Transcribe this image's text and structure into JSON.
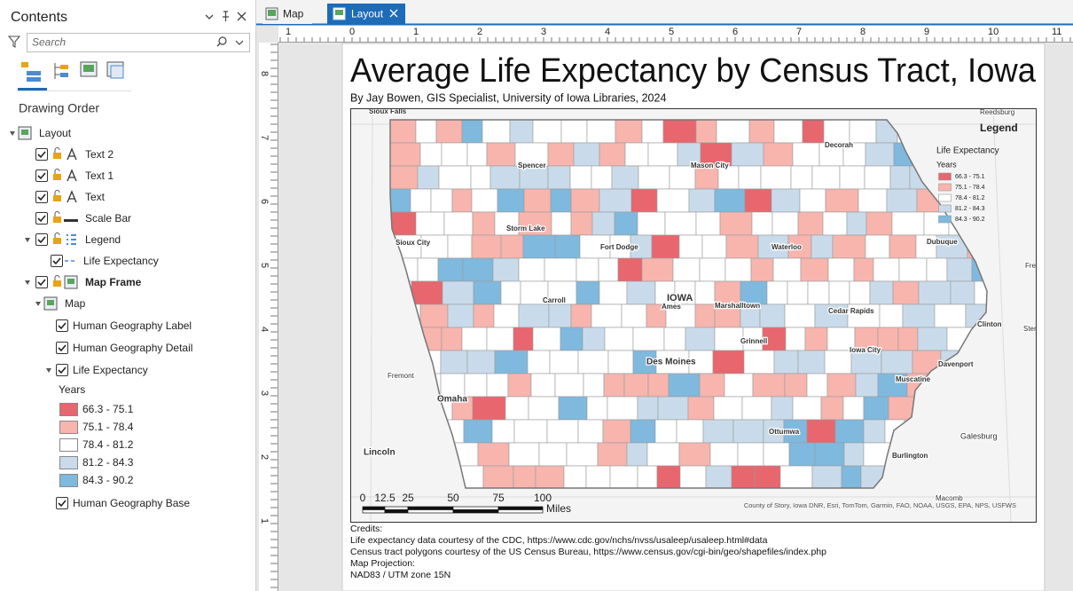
{
  "tabs": [
    "Map",
    "Layout"
  ],
  "contents": {
    "title": "Contents",
    "search_placeholder": "Search",
    "section": "Drawing Order",
    "tree": [
      "Layout",
      "Text 2",
      "Text 1",
      "Text",
      "Scale Bar",
      "Legend",
      "Life Expectancy",
      "Map Frame",
      "Map",
      "Human Geography Label",
      "Human Geography Detail",
      "Life Expectancy",
      "Human Geography Base"
    ],
    "symbology": {
      "field": "Years",
      "classes": [
        {
          "label": "66.3 - 75.1",
          "color": "#e8666e"
        },
        {
          "label": "75.1 - 78.4",
          "color": "#f7b5ae"
        },
        {
          "label": "78.4 - 81.2",
          "color": "#ffffff"
        },
        {
          "label": "81.2 - 84.3",
          "color": "#c9dbeb"
        },
        {
          "label": "84.3 - 90.2",
          "color": "#7fb9de"
        }
      ]
    }
  },
  "ruler": {
    "horizontal": [
      "1",
      "0",
      "1",
      "2",
      "3",
      "4",
      "5",
      "6",
      "7",
      "8",
      "9",
      "10",
      "11"
    ],
    "vertical": [
      "8",
      "7",
      "6",
      "5",
      "4",
      "3",
      "2",
      "1"
    ]
  },
  "layout": {
    "title": "Average Life Expectancy by Census Tract, Iowa",
    "subtitle": "By Jay Bowen, GIS Specialist, University of Iowa Libraries, 2024",
    "map_labels": [
      "Sioux Falls",
      "Reedsburg",
      "Decorah",
      "Spencer",
      "Mason City",
      "Storm Lake",
      "Fort Dodge",
      "Sioux City",
      "Waterloo",
      "Dubuque",
      "IOWA",
      "Ames",
      "Marshalltown",
      "Carroll",
      "Cedar Rapids",
      "Clinton",
      "Grinnell",
      "Iowa City",
      "Des Moines",
      "Davenport",
      "Fremont",
      "Muscatine",
      "Omaha",
      "Ottumwa",
      "Galesburg",
      "Lincoln",
      "Burlington",
      "Macomb",
      "Fre",
      "Ster"
    ],
    "legend": {
      "title": "Legend",
      "layer": "Life Expectancy",
      "field": "Years",
      "classes": [
        {
          "label": "66.3 - 75.1",
          "color": "#e8666e"
        },
        {
          "label": "75.1 - 78.4",
          "color": "#f7b5ae"
        },
        {
          "label": "78.4 - 81.2",
          "color": "#ffffff"
        },
        {
          "label": "81.2 - 84.3",
          "color": "#c9dbeb"
        },
        {
          "label": "84.3 - 90.2",
          "color": "#7fb9de"
        }
      ]
    },
    "scale_bar": {
      "labels": [
        "0",
        "12.5",
        "25",
        "50",
        "75",
        "100"
      ],
      "unit": "Miles"
    },
    "attribution": "County of Story, Iowa DNR, Esri, TomTom, Garmin, FAO, NOAA, USGS, EPA, NPS, USFWS",
    "credits": [
      "Credits:",
      "Life expectancy data courtesy of the CDC, https://www.cdc.gov/nchs/nvss/usaleep/usaleep.html#data",
      "Census tract polygons courtesy of the US Census Bureau, https://www.census.gov/cgi-bin/geo/shapefiles/index.php",
      "Map Projection:",
      "NAD83 / UTM zone 15N"
    ]
  }
}
